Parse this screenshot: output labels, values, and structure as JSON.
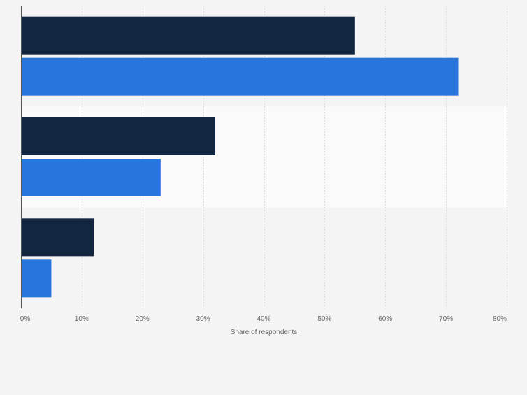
{
  "colors": {
    "page_bg": "#f4f4f4",
    "band_highlight": "#fafafa",
    "gridline": "#dcdcdc",
    "axis": "#555555",
    "tick_text": "#666666",
    "series_dark": "#13263f",
    "series_blue": "#2876dd"
  },
  "chart_data": {
    "type": "bar",
    "orientation": "horizontal",
    "categories": [
      "",
      "",
      ""
    ],
    "series": [
      {
        "values": [
          55,
          32,
          12
        ],
        "color": "#13263f"
      },
      {
        "values": [
          72,
          23,
          5
        ],
        "color": "#2876dd"
      }
    ],
    "xlabel": "Share of respondents",
    "ylabel": "",
    "xlim": [
      0,
      80
    ],
    "x_ticks": [
      "0%",
      "10%",
      "20%",
      "30%",
      "40%",
      "50%",
      "60%",
      "70%",
      "80%"
    ],
    "grid": true,
    "legend": "none"
  }
}
